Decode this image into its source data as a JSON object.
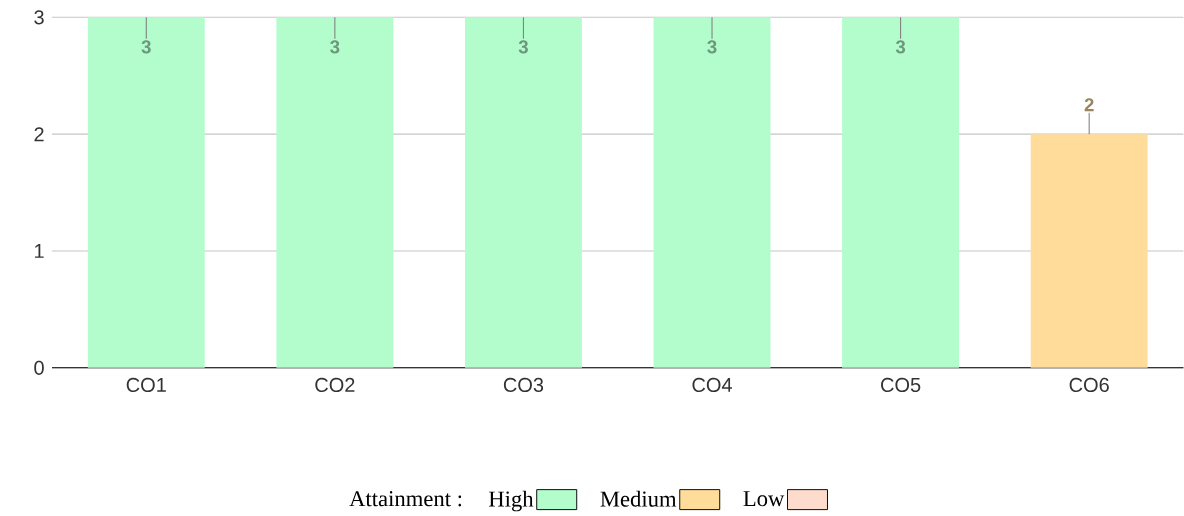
{
  "chart_data": {
    "type": "bar",
    "categories": [
      "CO1",
      "CO2",
      "CO3",
      "CO4",
      "CO5",
      "CO6"
    ],
    "series": [
      {
        "name": "High",
        "color": "#b3fccb",
        "values": [
          3,
          3,
          3,
          3,
          3,
          null
        ]
      },
      {
        "name": "Medium",
        "color": "#ffdc9a",
        "values": [
          null,
          null,
          null,
          null,
          null,
          2
        ]
      },
      {
        "name": "Low",
        "color": "#fddccd",
        "values": [
          null,
          null,
          null,
          null,
          null,
          null
        ]
      }
    ],
    "legend_title": "Attainment :",
    "legend": "bottom",
    "ylim": [
      0,
      3
    ],
    "yticks": [
      0,
      1,
      2,
      3
    ],
    "grid": "y",
    "data_labels": true
  }
}
